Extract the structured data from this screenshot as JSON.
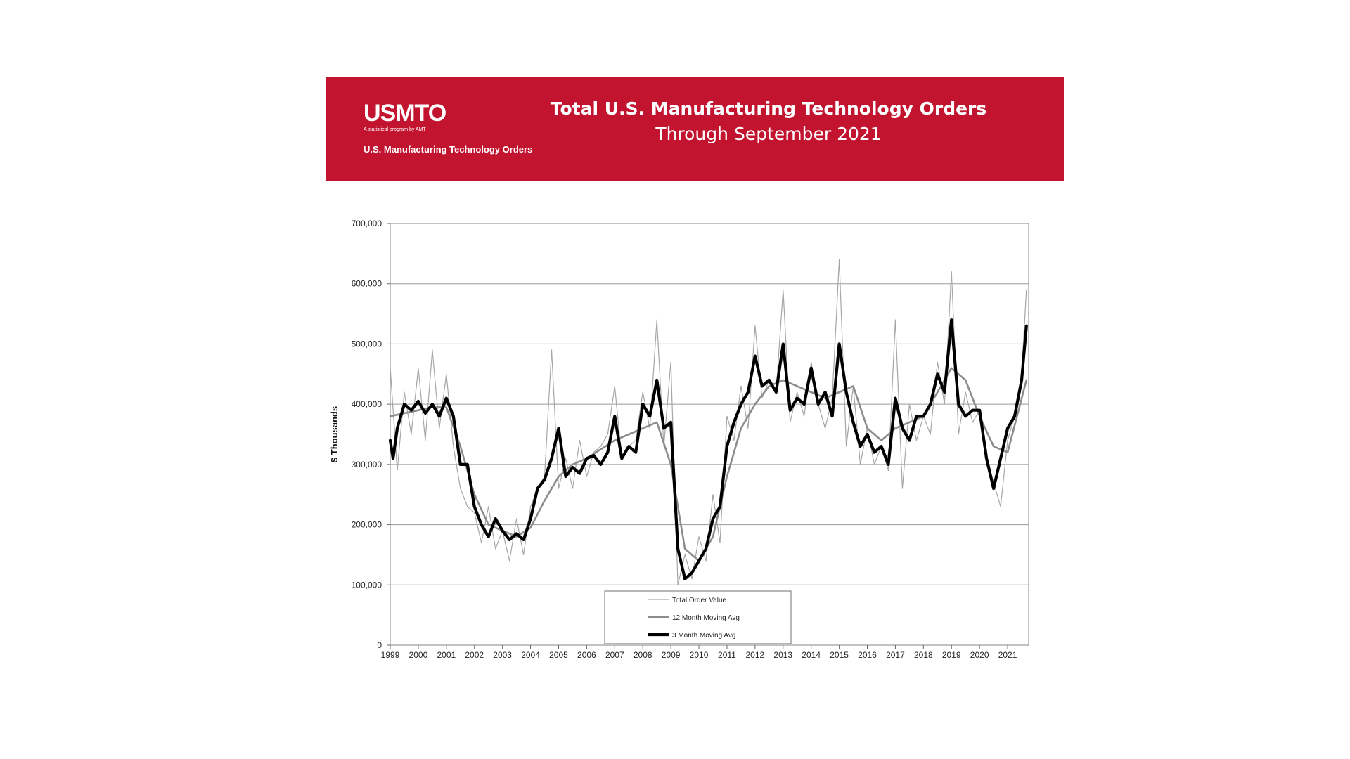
{
  "header": {
    "logo_text": "USMTO",
    "logo_tagline": "A statistical program by AMT",
    "logo_subtitle": "U.S. Manufacturing Technology Orders",
    "title": "Total U.S. Manufacturing Technology Orders",
    "subtitle": "Through September 2021",
    "background_color": "#c2132f"
  },
  "chart_data": {
    "type": "line",
    "title": "Total U.S. Manufacturing Technology Orders",
    "subtitle": "Through September 2021",
    "ylabel": "$ Thousands",
    "xlabel": "",
    "ylim": [
      0,
      700000
    ],
    "yticks": [
      0,
      100000,
      200000,
      300000,
      400000,
      500000,
      600000,
      700000
    ],
    "ytick_labels": [
      "0",
      "100,000",
      "200,000",
      "300,000",
      "400,000",
      "500,000",
      "600,000",
      "700,000"
    ],
    "xlim": [
      1999,
      2021.75
    ],
    "xtick_labels": [
      "1999",
      "2000",
      "2001",
      "2002",
      "2003",
      "2004",
      "2005",
      "2006",
      "2007",
      "2008",
      "2009",
      "2010",
      "2011",
      "2012",
      "2013",
      "2014",
      "2015",
      "2016",
      "2017",
      "2018",
      "2019",
      "2020",
      "2021"
    ],
    "grid": true,
    "legend_position": "bottom-center",
    "series": [
      {
        "name": "Total Order Value",
        "color": "#a6a6a6",
        "style": "thin",
        "x": [
          1999.0,
          1999.25,
          1999.5,
          1999.75,
          2000.0,
          2000.25,
          2000.5,
          2000.75,
          2001.0,
          2001.25,
          2001.5,
          2001.75,
          2002.0,
          2002.25,
          2002.5,
          2002.75,
          2003.0,
          2003.25,
          2003.5,
          2003.75,
          2004.0,
          2004.25,
          2004.5,
          2004.75,
          2005.0,
          2005.25,
          2005.5,
          2005.75,
          2006.0,
          2006.25,
          2006.5,
          2006.75,
          2007.0,
          2007.25,
          2007.5,
          2007.75,
          2008.0,
          2008.25,
          2008.5,
          2008.75,
          2009.0,
          2009.25,
          2009.5,
          2009.75,
          2010.0,
          2010.25,
          2010.5,
          2010.75,
          2011.0,
          2011.25,
          2011.5,
          2011.75,
          2012.0,
          2012.25,
          2012.5,
          2012.75,
          2013.0,
          2013.25,
          2013.5,
          2013.75,
          2014.0,
          2014.25,
          2014.5,
          2014.75,
          2015.0,
          2015.25,
          2015.5,
          2015.75,
          2016.0,
          2016.25,
          2016.5,
          2016.75,
          2017.0,
          2017.25,
          2017.5,
          2017.75,
          2018.0,
          2018.25,
          2018.5,
          2018.75,
          2019.0,
          2019.25,
          2019.5,
          2019.75,
          2020.0,
          2020.25,
          2020.5,
          2020.75,
          2021.0,
          2021.25,
          2021.5,
          2021.67
        ],
        "values": [
          460000,
          290000,
          420000,
          350000,
          460000,
          340000,
          490000,
          360000,
          450000,
          330000,
          260000,
          230000,
          220000,
          170000,
          230000,
          160000,
          190000,
          140000,
          210000,
          150000,
          230000,
          260000,
          280000,
          490000,
          260000,
          310000,
          260000,
          340000,
          280000,
          320000,
          330000,
          350000,
          430000,
          310000,
          330000,
          340000,
          420000,
          360000,
          540000,
          330000,
          470000,
          100000,
          150000,
          110000,
          180000,
          140000,
          250000,
          170000,
          380000,
          340000,
          430000,
          360000,
          530000,
          410000,
          440000,
          420000,
          590000,
          370000,
          420000,
          380000,
          470000,
          400000,
          360000,
          410000,
          640000,
          330000,
          430000,
          300000,
          360000,
          300000,
          330000,
          290000,
          540000,
          260000,
          400000,
          340000,
          380000,
          350000,
          470000,
          400000,
          620000,
          350000,
          420000,
          370000,
          390000,
          300000,
          270000,
          230000,
          340000,
          380000,
          450000,
          590000
        ]
      },
      {
        "name": "12 Month Moving Avg",
        "color": "#8c8c8c",
        "style": "medium",
        "x": [
          1999.0,
          1999.5,
          2000.0,
          2000.5,
          2001.0,
          2001.5,
          2002.0,
          2002.5,
          2003.0,
          2003.5,
          2004.0,
          2004.5,
          2005.0,
          2005.5,
          2006.0,
          2006.5,
          2007.0,
          2007.5,
          2008.0,
          2008.5,
          2009.0,
          2009.5,
          2010.0,
          2010.5,
          2011.0,
          2011.5,
          2012.0,
          2012.5,
          2013.0,
          2013.5,
          2014.0,
          2014.5,
          2015.0,
          2015.5,
          2016.0,
          2016.5,
          2017.0,
          2017.5,
          2018.0,
          2018.5,
          2019.0,
          2019.5,
          2020.0,
          2020.5,
          2021.0,
          2021.67
        ],
        "values": [
          380000,
          385000,
          390000,
          395000,
          395000,
          330000,
          250000,
          200000,
          190000,
          180000,
          195000,
          240000,
          280000,
          300000,
          310000,
          325000,
          340000,
          350000,
          360000,
          370000,
          300000,
          160000,
          140000,
          180000,
          280000,
          360000,
          400000,
          430000,
          440000,
          430000,
          420000,
          410000,
          420000,
          430000,
          360000,
          340000,
          360000,
          370000,
          380000,
          420000,
          460000,
          440000,
          380000,
          330000,
          320000,
          440000
        ]
      },
      {
        "name": "3 Month Moving Avg",
        "color": "#000000",
        "style": "thick",
        "x": [
          1999.0,
          1999.1,
          1999.25,
          1999.5,
          1999.75,
          2000.0,
          2000.25,
          2000.5,
          2000.75,
          2001.0,
          2001.25,
          2001.5,
          2001.75,
          2002.0,
          2002.25,
          2002.5,
          2002.75,
          2003.0,
          2003.25,
          2003.5,
          2003.75,
          2004.0,
          2004.25,
          2004.5,
          2004.75,
          2005.0,
          2005.25,
          2005.5,
          2005.75,
          2006.0,
          2006.25,
          2006.5,
          2006.75,
          2007.0,
          2007.25,
          2007.5,
          2007.75,
          2008.0,
          2008.25,
          2008.5,
          2008.75,
          2009.0,
          2009.25,
          2009.5,
          2009.75,
          2010.0,
          2010.25,
          2010.5,
          2010.75,
          2011.0,
          2011.25,
          2011.5,
          2011.75,
          2012.0,
          2012.25,
          2012.5,
          2012.75,
          2013.0,
          2013.25,
          2013.5,
          2013.75,
          2014.0,
          2014.25,
          2014.5,
          2014.75,
          2015.0,
          2015.25,
          2015.5,
          2015.75,
          2016.0,
          2016.25,
          2016.5,
          2016.75,
          2017.0,
          2017.25,
          2017.5,
          2017.75,
          2018.0,
          2018.25,
          2018.5,
          2018.75,
          2019.0,
          2019.25,
          2019.5,
          2019.75,
          2020.0,
          2020.25,
          2020.5,
          2020.75,
          2021.0,
          2021.25,
          2021.5,
          2021.67
        ],
        "values": [
          340000,
          310000,
          360000,
          400000,
          390000,
          405000,
          385000,
          400000,
          380000,
          410000,
          380000,
          300000,
          300000,
          230000,
          200000,
          180000,
          210000,
          190000,
          175000,
          185000,
          175000,
          210000,
          260000,
          275000,
          310000,
          360000,
          280000,
          295000,
          285000,
          310000,
          315000,
          300000,
          320000,
          380000,
          310000,
          330000,
          320000,
          400000,
          380000,
          440000,
          360000,
          370000,
          160000,
          110000,
          120000,
          140000,
          160000,
          210000,
          230000,
          330000,
          370000,
          400000,
          420000,
          480000,
          430000,
          440000,
          420000,
          500000,
          390000,
          410000,
          400000,
          460000,
          400000,
          420000,
          380000,
          500000,
          420000,
          370000,
          330000,
          350000,
          320000,
          330000,
          300000,
          410000,
          360000,
          340000,
          380000,
          380000,
          400000,
          450000,
          420000,
          540000,
          400000,
          380000,
          390000,
          390000,
          310000,
          260000,
          310000,
          360000,
          380000,
          440000,
          530000
        ]
      }
    ]
  }
}
